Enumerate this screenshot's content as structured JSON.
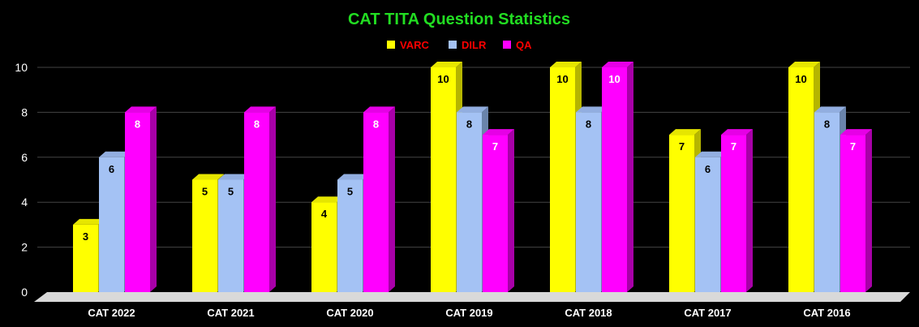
{
  "chart_data": {
    "type": "bar",
    "title": "CAT TITA Question Statistics",
    "categories": [
      "CAT 2022",
      "CAT 2021",
      "CAT 2020",
      "CAT 2019",
      "CAT 2018",
      "CAT 2017",
      "CAT 2016"
    ],
    "series": [
      {
        "name": "VARC",
        "values": [
          3,
          5,
          4,
          10,
          10,
          7,
          10
        ],
        "color": "#ffff00",
        "side_color": "#b5b500",
        "top_color": "#e6e600",
        "label_color": "#000000"
      },
      {
        "name": "DILR",
        "values": [
          6,
          5,
          5,
          8,
          8,
          6,
          8
        ],
        "color": "#a4c2f4",
        "side_color": "#6a84ab",
        "top_color": "#92aee0",
        "label_color": "#000000"
      },
      {
        "name": "QA",
        "values": [
          8,
          8,
          8,
          7,
          10,
          7,
          7
        ],
        "color": "#ff00ff",
        "side_color": "#a800a8",
        "top_color": "#e600e6",
        "label_color": "#ffffff"
      }
    ],
    "ylim": [
      0,
      10
    ],
    "yticks": [
      0,
      2,
      4,
      6,
      8,
      10
    ],
    "grid": true,
    "legend_position": "top-center",
    "title_color": "#22dd22",
    "legend_text_color": "#ff0000",
    "grid_color": "#444444",
    "floor_color": "#d9d9d9"
  }
}
